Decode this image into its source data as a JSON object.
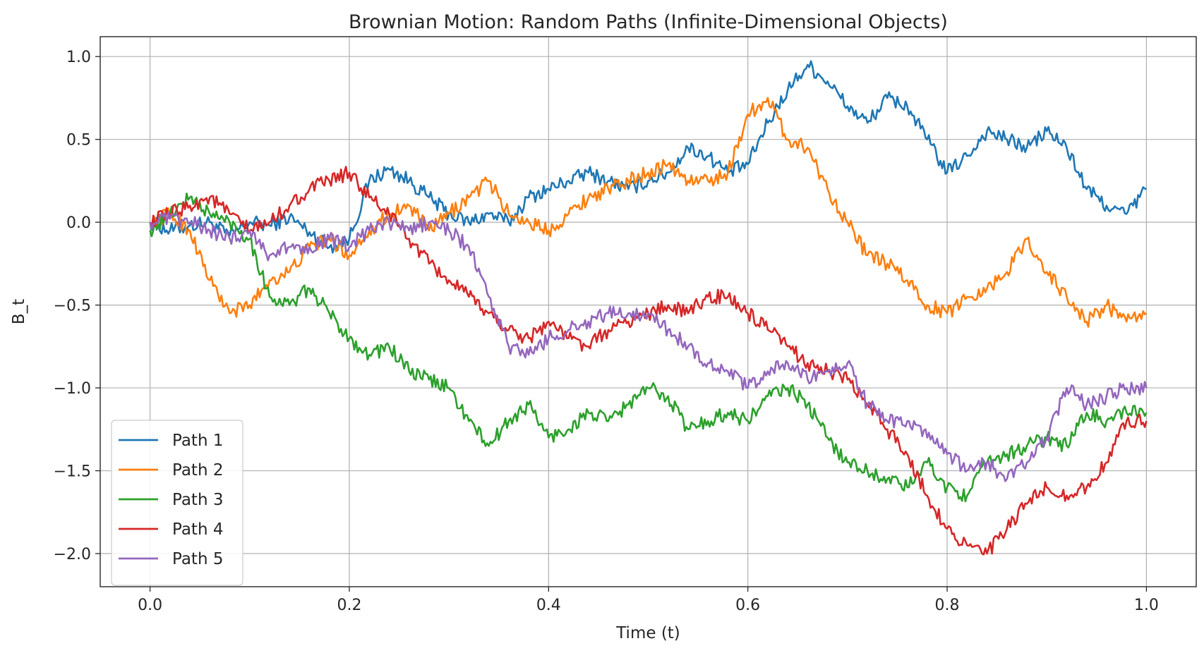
{
  "chart_data": {
    "type": "line",
    "title": "Brownian Motion: Random Paths (Infinite-Dimensional Objects)",
    "xlabel": "Time (t)",
    "ylabel": "B_t",
    "xlim": [
      -0.05,
      1.05
    ],
    "ylim": [
      -2.2,
      1.12
    ],
    "xticks": [
      0.0,
      0.2,
      0.4,
      0.6,
      0.8,
      1.0
    ],
    "xtick_labels": [
      "0.0",
      "0.2",
      "0.4",
      "0.6",
      "0.8",
      "1.0"
    ],
    "yticks": [
      -2.0,
      -1.5,
      -1.0,
      -0.5,
      0.0,
      0.5,
      1.0
    ],
    "ytick_labels": [
      "−2.0",
      "−1.5",
      "−1.0",
      "−0.5",
      "0.0",
      "0.5",
      "1.0"
    ],
    "grid": true,
    "legend_position": "lower-left",
    "x": [
      0.0,
      0.02,
      0.04,
      0.06,
      0.08,
      0.1,
      0.12,
      0.14,
      0.16,
      0.18,
      0.2,
      0.22,
      0.24,
      0.26,
      0.28,
      0.3,
      0.32,
      0.34,
      0.36,
      0.38,
      0.4,
      0.42,
      0.44,
      0.46,
      0.48,
      0.5,
      0.52,
      0.54,
      0.56,
      0.58,
      0.6,
      0.62,
      0.64,
      0.66,
      0.68,
      0.7,
      0.72,
      0.74,
      0.76,
      0.78,
      0.8,
      0.82,
      0.84,
      0.86,
      0.88,
      0.9,
      0.92,
      0.94,
      0.96,
      0.98,
      1.0
    ],
    "series": [
      {
        "name": "Path 1",
        "color": "#1f77b4",
        "values": [
          0.0,
          -0.05,
          -0.02,
          0.0,
          -0.08,
          0.0,
          -0.02,
          0.03,
          -0.06,
          -0.15,
          -0.1,
          0.25,
          0.32,
          0.25,
          0.15,
          0.05,
          0.0,
          0.05,
          0.0,
          0.15,
          0.2,
          0.25,
          0.3,
          0.25,
          0.2,
          0.25,
          0.3,
          0.45,
          0.4,
          0.3,
          0.35,
          0.6,
          0.8,
          0.95,
          0.85,
          0.7,
          0.6,
          0.75,
          0.7,
          0.5,
          0.3,
          0.4,
          0.55,
          0.5,
          0.45,
          0.55,
          0.45,
          0.2,
          0.1,
          0.05,
          0.2
        ]
      },
      {
        "name": "Path 2",
        "color": "#ff7f0e",
        "values": [
          0.0,
          0.05,
          -0.05,
          -0.35,
          -0.55,
          -0.5,
          -0.35,
          -0.3,
          -0.15,
          -0.1,
          -0.2,
          -0.05,
          0.05,
          0.1,
          -0.05,
          0.05,
          0.15,
          0.25,
          0.05,
          0.0,
          -0.05,
          0.05,
          0.15,
          0.2,
          0.25,
          0.3,
          0.35,
          0.25,
          0.25,
          0.3,
          0.65,
          0.75,
          0.5,
          0.45,
          0.2,
          0.0,
          -0.2,
          -0.25,
          -0.35,
          -0.5,
          -0.55,
          -0.45,
          -0.4,
          -0.3,
          -0.1,
          -0.3,
          -0.45,
          -0.6,
          -0.5,
          -0.6,
          -0.55
        ]
      },
      {
        "name": "Path 3",
        "color": "#2ca02c",
        "values": [
          -0.05,
          0.05,
          0.15,
          0.05,
          0.0,
          -0.1,
          -0.45,
          -0.5,
          -0.4,
          -0.55,
          -0.7,
          -0.8,
          -0.75,
          -0.9,
          -0.95,
          -1.0,
          -1.2,
          -1.35,
          -1.2,
          -1.1,
          -1.3,
          -1.25,
          -1.15,
          -1.2,
          -1.1,
          -1.0,
          -1.05,
          -1.25,
          -1.2,
          -1.15,
          -1.2,
          -1.05,
          -1.0,
          -1.1,
          -1.3,
          -1.45,
          -1.5,
          -1.55,
          -1.6,
          -1.45,
          -1.6,
          -1.65,
          -1.45,
          -1.4,
          -1.35,
          -1.3,
          -1.35,
          -1.15,
          -1.2,
          -1.15,
          -1.15
        ]
      },
      {
        "name": "Path 4",
        "color": "#d62728",
        "values": [
          0.0,
          0.05,
          0.1,
          0.15,
          0.05,
          -0.05,
          0.0,
          0.1,
          0.2,
          0.25,
          0.3,
          0.15,
          0.05,
          -0.1,
          -0.25,
          -0.35,
          -0.45,
          -0.55,
          -0.65,
          -0.7,
          -0.6,
          -0.7,
          -0.75,
          -0.65,
          -0.6,
          -0.55,
          -0.5,
          -0.55,
          -0.45,
          -0.45,
          -0.55,
          -0.65,
          -0.75,
          -0.85,
          -0.9,
          -0.95,
          -1.1,
          -1.25,
          -1.4,
          -1.65,
          -1.85,
          -1.95,
          -2.0,
          -1.85,
          -1.7,
          -1.6,
          -1.65,
          -1.6,
          -1.45,
          -1.2,
          -1.2
        ]
      },
      {
        "name": "Path 5",
        "color": "#9467bd",
        "values": [
          0.0,
          0.02,
          0.0,
          -0.05,
          -0.1,
          -0.05,
          -0.2,
          -0.15,
          -0.15,
          -0.1,
          -0.15,
          -0.05,
          0.0,
          -0.05,
          0.0,
          -0.05,
          -0.15,
          -0.45,
          -0.75,
          -0.8,
          -0.7,
          -0.65,
          -0.6,
          -0.55,
          -0.55,
          -0.55,
          -0.65,
          -0.75,
          -0.85,
          -0.9,
          -1.0,
          -0.9,
          -0.85,
          -0.95,
          -0.9,
          -0.85,
          -1.1,
          -1.2,
          -1.2,
          -1.3,
          -1.4,
          -1.5,
          -1.45,
          -1.55,
          -1.45,
          -1.3,
          -1.0,
          -1.1,
          -1.05,
          -1.0,
          -1.0
        ]
      }
    ]
  }
}
